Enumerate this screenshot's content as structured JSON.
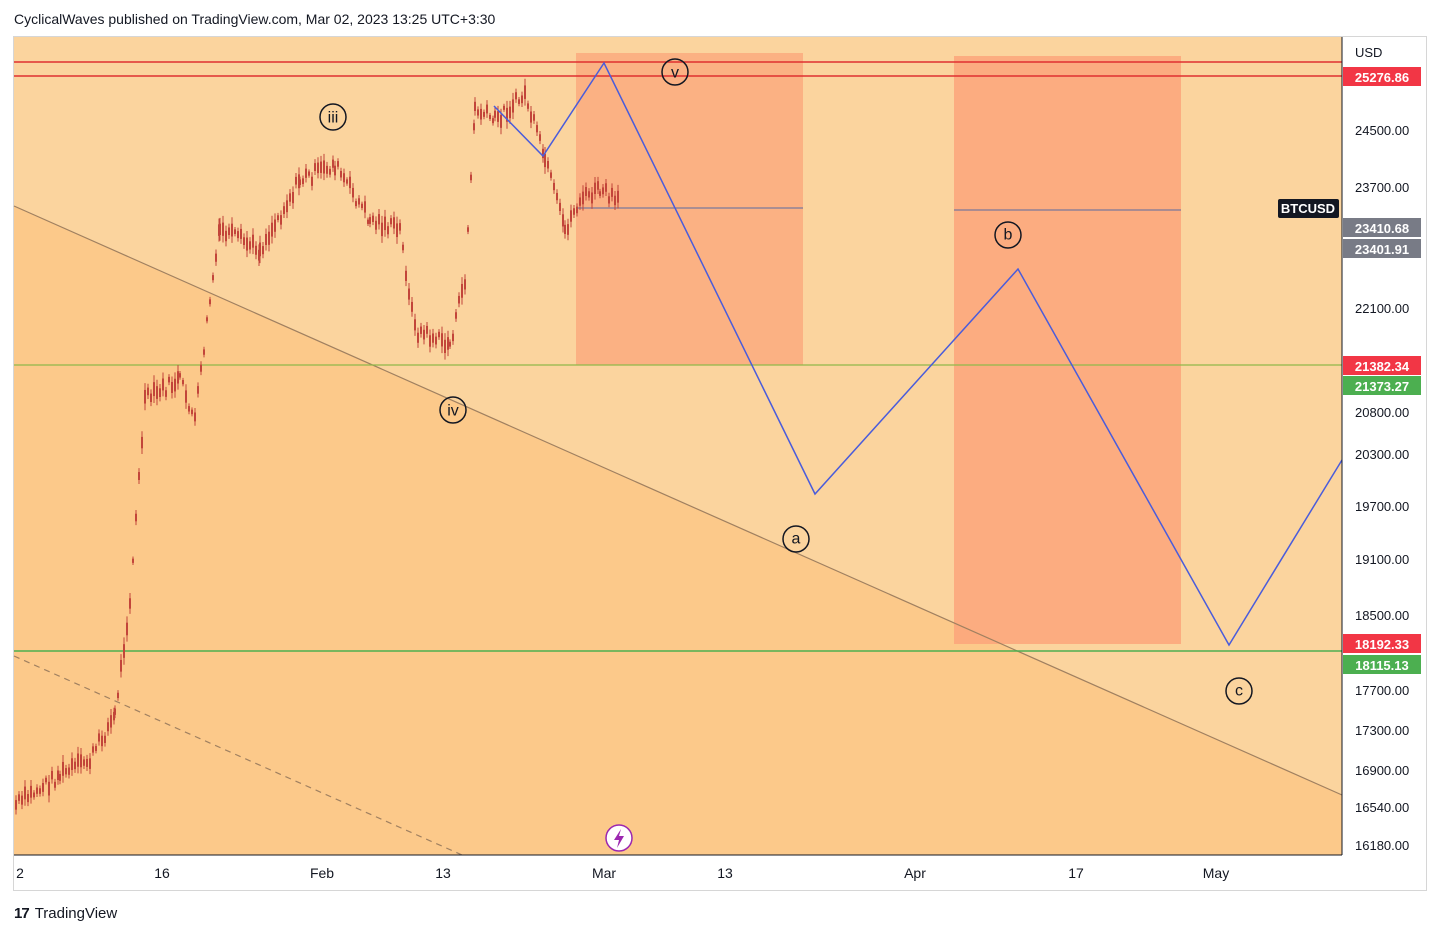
{
  "header": {
    "publisher_line": "CyclicalWaves published on TradingView.com, Mar 02, 2023 13:25 UTC+3:30"
  },
  "footer": {
    "brand": "TradingView",
    "logo_mark": "17"
  },
  "colors": {
    "background": "#fbd49e",
    "lower_zone": "#fcc98a",
    "box_fill": "#fba57a",
    "resistance": "#e03030",
    "support_green": "#6cbf4a",
    "projection": "#4a5cdb",
    "candle": "#c2453a",
    "trendline": "#a08060"
  },
  "chart_data": {
    "type": "line",
    "symbol": "BTCUSD",
    "currency": "USD",
    "price_axis_ticks": [
      "24500.00",
      "23700.00",
      "22100.00",
      "20800.00",
      "20300.00",
      "19700.00",
      "19100.00",
      "18500.00",
      "17700.00",
      "17300.00",
      "16900.00",
      "16540.00",
      "16180.00"
    ],
    "time_axis_ticks": [
      "2",
      "16",
      "Feb",
      "13",
      "Mar",
      "13",
      "Apr",
      "17",
      "May"
    ],
    "price_tags": [
      {
        "value": "25276.86",
        "color": "#f23645"
      },
      {
        "value": "23410.68",
        "color": "#787b86"
      },
      {
        "value": "23401.91",
        "color": "#787b86"
      },
      {
        "value": "21382.34",
        "color": "#f23645"
      },
      {
        "value": "21373.27",
        "color": "#4caf50"
      },
      {
        "value": "18192.33",
        "color": "#f23645"
      },
      {
        "value": "18115.13",
        "color": "#4caf50"
      }
    ],
    "symbol_tag": "BTCUSD",
    "wave_labels": [
      "iii",
      "iv",
      "v",
      "a",
      "b",
      "c"
    ],
    "elliott_projection": [
      {
        "label": "v",
        "date": "2023-03-01",
        "price": 25150
      },
      {
        "label": "a",
        "date": "2023-03-22",
        "price": 19850
      },
      {
        "label": "b",
        "date": "2023-04-11",
        "price": 22700
      },
      {
        "label": "c",
        "date": "2023-04-30",
        "price": 18250
      }
    ],
    "horizontal_levels": [
      25276.86,
      25150,
      21382.34,
      18192.33
    ]
  }
}
